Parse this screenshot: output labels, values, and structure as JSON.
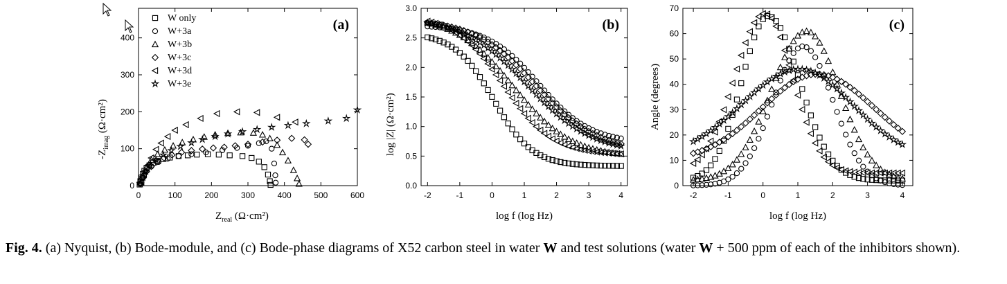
{
  "caption": {
    "label": "Fig. 4.",
    "part1": " (a) Nyquist, (b) Bode-module, and (c) Bode-phase diagrams of X52 carbon steel in water ",
    "w1": "W",
    "part2": " and test solutions (water ",
    "w2": "W",
    "part3": " + 500 ppm of each of the inhibitors shown)."
  },
  "legend": [
    "W only",
    "W+3a",
    "W+3b",
    "W+3c",
    "W+3d",
    "W+3e"
  ],
  "marker_icons": [
    "square-marker-icon",
    "circle-marker-icon",
    "triangle-up-marker-icon",
    "diamond-marker-icon",
    "triangle-left-marker-icon",
    "star-marker-icon"
  ],
  "chart_data": [
    {
      "type": "scatter",
      "panel_label": "(a)",
      "title": "",
      "xlabel_main": "Z",
      "xlabel_sub": "real",
      "xlabel_unit": " (Ω·cm²)",
      "ylabel_main": "-Z",
      "ylabel_sub": "imag",
      "ylabel_unit": " (Ω·cm²)",
      "xlim": [
        0,
        600
      ],
      "ylim": [
        0,
        480
      ],
      "xticks": [
        0,
        100,
        200,
        300,
        400,
        500,
        600
      ],
      "yticks": [
        0,
        100,
        200,
        300,
        400
      ],
      "grid": false,
      "legend_position": "top-left",
      "series": [
        {
          "name": "W only",
          "marker": "square",
          "points": [
            [
              3,
              3
            ],
            [
              5,
              12
            ],
            [
              8,
              22
            ],
            [
              12,
              32
            ],
            [
              16,
              40
            ],
            [
              22,
              48
            ],
            [
              30,
              55
            ],
            [
              40,
              62
            ],
            [
              52,
              67
            ],
            [
              68,
              72
            ],
            [
              86,
              76
            ],
            [
              110,
              80
            ],
            [
              135,
              82
            ],
            [
              160,
              84
            ],
            [
              190,
              85
            ],
            [
              220,
              84
            ],
            [
              250,
              82
            ],
            [
              285,
              80
            ],
            [
              310,
              75
            ],
            [
              330,
              65
            ],
            [
              345,
              50
            ],
            [
              355,
              30
            ],
            [
              360,
              12
            ],
            [
              362,
              2
            ]
          ]
        },
        {
          "name": "W+3a",
          "marker": "circle",
          "points": [
            [
              5,
              5
            ],
            [
              10,
              20
            ],
            [
              20,
              38
            ],
            [
              35,
              52
            ],
            [
              55,
              64
            ],
            [
              80,
              73
            ],
            [
              110,
              80
            ],
            [
              145,
              85
            ],
            [
              185,
              90
            ],
            [
              230,
              96
            ],
            [
              270,
              102
            ],
            [
              300,
              108
            ],
            [
              330,
              115
            ],
            [
              350,
              120
            ],
            [
              365,
              100
            ],
            [
              372,
              60
            ],
            [
              375,
              28
            ],
            [
              376,
              8
            ]
          ]
        },
        {
          "name": "W+3b",
          "marker": "triangle-up",
          "points": [
            [
              5,
              8
            ],
            [
              12,
              28
            ],
            [
              22,
              50
            ],
            [
              35,
              70
            ],
            [
              52,
              85
            ],
            [
              72,
              97
            ],
            [
              95,
              108
            ],
            [
              120,
              117
            ],
            [
              150,
              125
            ],
            [
              180,
              132
            ],
            [
              210,
              138
            ],
            [
              245,
              142
            ],
            [
              280,
              144
            ],
            [
              315,
              143
            ],
            [
              340,
              138
            ],
            [
              360,
              128
            ],
            [
              380,
              110
            ],
            [
              395,
              90
            ],
            [
              410,
              68
            ],
            [
              425,
              42
            ],
            [
              435,
              20
            ],
            [
              440,
              5
            ]
          ]
        },
        {
          "name": "W+3c",
          "marker": "diamond",
          "points": [
            [
              5,
              5
            ],
            [
              12,
              20
            ],
            [
              22,
              38
            ],
            [
              35,
              52
            ],
            [
              50,
              64
            ],
            [
              70,
              75
            ],
            [
              92,
              83
            ],
            [
              118,
              90
            ],
            [
              145,
              95
            ],
            [
              175,
              99
            ],
            [
              205,
              102
            ],
            [
              235,
              104
            ],
            [
              265,
              108
            ],
            [
              300,
              112
            ],
            [
              340,
              118
            ],
            [
              380,
              123
            ],
            [
              420,
              128
            ],
            [
              455,
              124
            ],
            [
              465,
              112
            ]
          ]
        },
        {
          "name": "W+3d",
          "marker": "triangle-left",
          "points": [
            [
              8,
              10
            ],
            [
              15,
              30
            ],
            [
              25,
              55
            ],
            [
              35,
              75
            ],
            [
              48,
              98
            ],
            [
              62,
              115
            ],
            [
              80,
              133
            ],
            [
              100,
              150
            ],
            [
              130,
              165
            ],
            [
              170,
              182
            ],
            [
              215,
              195
            ],
            [
              270,
              200
            ],
            [
              325,
              198
            ],
            [
              380,
              185
            ],
            [
              430,
              172
            ]
          ]
        },
        {
          "name": "W+3e",
          "marker": "star",
          "points": [
            [
              5,
              5
            ],
            [
              12,
              22
            ],
            [
              20,
              38
            ],
            [
              32,
              55
            ],
            [
              48,
              70
            ],
            [
              68,
              83
            ],
            [
              90,
              95
            ],
            [
              115,
              106
            ],
            [
              145,
              116
            ],
            [
              175,
              125
            ],
            [
              210,
              133
            ],
            [
              245,
              140
            ],
            [
              285,
              146
            ],
            [
              325,
              152
            ],
            [
              365,
              158
            ],
            [
              410,
              163
            ],
            [
              460,
              168
            ],
            [
              520,
              175
            ],
            [
              570,
              182
            ],
            [
              600,
              205
            ]
          ]
        }
      ]
    },
    {
      "type": "scatter",
      "panel_label": "(b)",
      "title": "",
      "xlabel": "log f (log Hz)",
      "ylabel_main": "log |Z|",
      "ylabel_unit": " (Ω·cm²)",
      "xlim": [
        -2.2,
        4.2
      ],
      "ylim": [
        0,
        3.0
      ],
      "xticks": [
        -2,
        -1,
        0,
        1,
        2,
        3,
        4
      ],
      "yticks": [
        0.0,
        0.5,
        1.0,
        1.5,
        2.0,
        2.5,
        3.0
      ],
      "grid": false,
      "series": [
        {
          "name": "W only",
          "marker": "square",
          "curve": {
            "low": 0.33,
            "high": 2.58,
            "center": 0.05,
            "width": 0.6
          }
        },
        {
          "name": "W+3a",
          "marker": "circle",
          "curve": {
            "low": 0.72,
            "high": 2.72,
            "center": 1.45,
            "width": 0.8
          }
        },
        {
          "name": "W+3b",
          "marker": "triangle-up",
          "curve": {
            "low": 0.48,
            "high": 2.88,
            "center": 0.65,
            "width": 0.9
          }
        },
        {
          "name": "W+3c",
          "marker": "diamond",
          "curve": {
            "low": 0.58,
            "high": 2.82,
            "center": 1.35,
            "width": 0.95
          }
        },
        {
          "name": "W+3d",
          "marker": "triangle-left",
          "curve": {
            "low": 0.52,
            "high": 2.88,
            "center": 0.35,
            "width": 0.75
          }
        },
        {
          "name": "W+3e",
          "marker": "star",
          "curve": {
            "low": 0.55,
            "high": 2.85,
            "center": 1.1,
            "width": 1.0
          }
        }
      ]
    },
    {
      "type": "scatter",
      "panel_label": "(c)",
      "title": "",
      "xlabel": "log f (log Hz)",
      "ylabel": "Angle (degrees)",
      "xlim": [
        -2.3,
        4.3
      ],
      "ylim": [
        0,
        70
      ],
      "xticks": [
        -2,
        -1,
        0,
        1,
        2,
        3,
        4
      ],
      "yticks": [
        0,
        10,
        20,
        30,
        40,
        50,
        60,
        70
      ],
      "grid": false,
      "series": [
        {
          "name": "W only",
          "marker": "square",
          "curve": {
            "peak": 67,
            "center": 0.15,
            "widthL": 1.05,
            "widthR": 1.25,
            "base": 2
          }
        },
        {
          "name": "W+3a",
          "marker": "circle",
          "curve": {
            "peak": 55,
            "center": 1.15,
            "widthL": 1.2,
            "widthR": 1.2,
            "base": 0
          }
        },
        {
          "name": "W+3b",
          "marker": "triangle-up",
          "curve": {
            "peak": 61,
            "center": 1.25,
            "widthL": 1.4,
            "widthR": 1.3,
            "base": 2
          }
        },
        {
          "name": "W+3c",
          "marker": "diamond",
          "curve": {
            "peak": 44,
            "center": 1.55,
            "widthL": 2.2,
            "widthR": 2.3,
            "base": 10
          }
        },
        {
          "name": "W+3d",
          "marker": "triangle-left",
          "curve": {
            "peak": 68,
            "center": 0.05,
            "widthL": 1.2,
            "widthR": 1.1,
            "base": 5
          }
        },
        {
          "name": "W+3e",
          "marker": "star",
          "curve": {
            "peak": 46,
            "center": 1.05,
            "widthL": 2.3,
            "widthR": 2.1,
            "base": 11
          }
        }
      ]
    }
  ]
}
